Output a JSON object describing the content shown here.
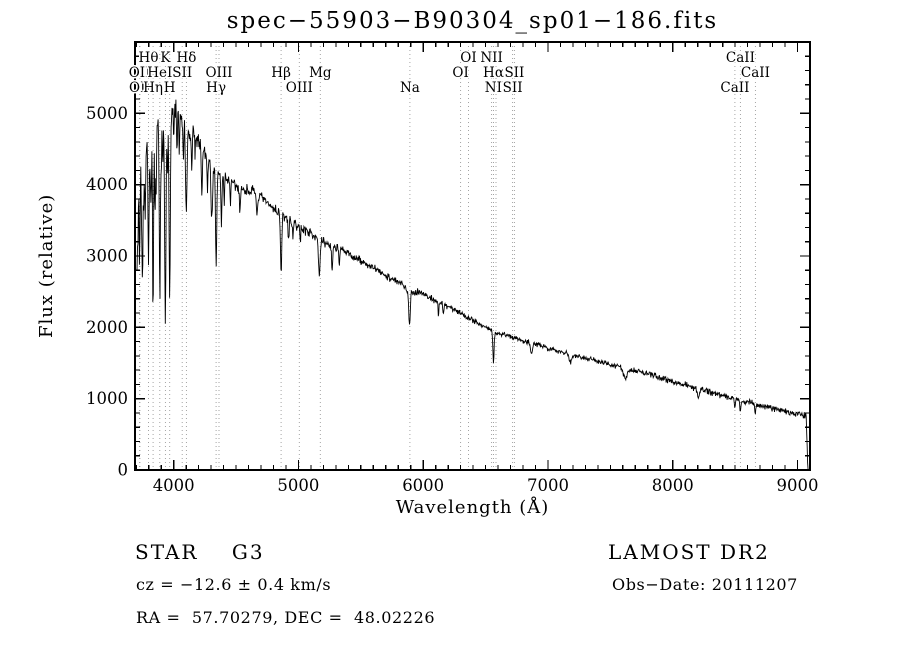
{
  "chart_data": {
    "type": "line",
    "title": "spec−55903−B90304_sp01−186.fits",
    "xlabel": "Wavelength (Å)",
    "ylabel": "Flux (relative)",
    "xlim": [
      3690,
      9100
    ],
    "ylim": [
      0,
      6000
    ],
    "x_major_ticks": [
      4000,
      5000,
      6000,
      7000,
      8000,
      9000
    ],
    "x_minor_step": 100,
    "y_major_ticks": [
      0,
      1000,
      2000,
      3000,
      4000,
      5000
    ],
    "y_minor_step": 200,
    "line_color": "#000000",
    "marker_line_color": "#9a9a9a",
    "frame_color": "#000000",
    "spectral_lines": [
      {
        "label": "OII",
        "wavelength": 3727,
        "row": 2
      },
      {
        "label": "OII",
        "wavelength": 3729,
        "row": 3
      },
      {
        "label": "Hθ",
        "wavelength": 3798,
        "row": 1
      },
      {
        "label": "Hη",
        "wavelength": 3835,
        "row": 3
      },
      {
        "label": "HeI",
        "wavelength": 3889,
        "row": 2
      },
      {
        "label": "K",
        "wavelength": 3934,
        "row": 1
      },
      {
        "label": "H",
        "wavelength": 3968,
        "row": 3
      },
      {
        "label": "SII",
        "wavelength": 4068,
        "row": 2
      },
      {
        "label": "Hδ",
        "wavelength": 4102,
        "row": 1
      },
      {
        "label": "Hγ",
        "wavelength": 4340,
        "row": 3
      },
      {
        "label": "OIII",
        "wavelength": 4363,
        "row": 2
      },
      {
        "label": "Hβ",
        "wavelength": 4861,
        "row": 2
      },
      {
        "label": "OIII",
        "wavelength": 5007,
        "row": 3
      },
      {
        "label": "Mg",
        "wavelength": 5175,
        "row": 2
      },
      {
        "label": "Na",
        "wavelength": 5893,
        "row": 3
      },
      {
        "label": "OI",
        "wavelength": 6300,
        "row": 2
      },
      {
        "label": "OI",
        "wavelength": 6363,
        "row": 1
      },
      {
        "label": "NII",
        "wavelength": 6548,
        "row": 1
      },
      {
        "label": "Hα",
        "wavelength": 6563,
        "row": 2
      },
      {
        "label": "NII",
        "wavelength": 6583,
        "row": 3
      },
      {
        "label": "SII",
        "wavelength": 6716,
        "row": 3
      },
      {
        "label": "SII",
        "wavelength": 6731,
        "row": 2
      },
      {
        "label": "CaII",
        "wavelength": 8498,
        "row": 3
      },
      {
        "label": "CaII",
        "wavelength": 8542,
        "row": 1
      },
      {
        "label": "CaII",
        "wavelength": 8662,
        "row": 2
      }
    ],
    "spectrum": {
      "seed": 7,
      "samples": 1400,
      "range": [
        3706,
        9085
      ],
      "cutoff": {
        "start": 9070,
        "end": 9083
      },
      "continuum_points": [
        [
          3705,
          3200
        ],
        [
          3720,
          4300
        ],
        [
          3737,
          4600
        ],
        [
          3755,
          4500
        ],
        [
          3775,
          4700
        ],
        [
          3795,
          4650
        ],
        [
          3815,
          4750
        ],
        [
          3835,
          4700
        ],
        [
          3855,
          4650
        ],
        [
          3875,
          4850
        ],
        [
          3895,
          4800
        ],
        [
          3915,
          4900
        ],
        [
          3935,
          4900
        ],
        [
          3955,
          4950
        ],
        [
          3975,
          5000
        ],
        [
          3995,
          5050
        ],
        [
          4015,
          5080
        ],
        [
          4040,
          4950
        ],
        [
          4070,
          4850
        ],
        [
          4100,
          4750
        ],
        [
          4130,
          4650
        ],
        [
          4170,
          4720
        ],
        [
          4210,
          4580
        ],
        [
          4260,
          4420
        ],
        [
          4310,
          4280
        ],
        [
          4360,
          4150
        ],
        [
          4410,
          4120
        ],
        [
          4460,
          4020
        ],
        [
          4510,
          3960
        ],
        [
          4560,
          3920
        ],
        [
          4610,
          3930
        ],
        [
          4660,
          3860
        ],
        [
          4710,
          3800
        ],
        [
          4760,
          3720
        ],
        [
          4810,
          3660
        ],
        [
          4860,
          3580
        ],
        [
          4910,
          3520
        ],
        [
          4960,
          3460
        ],
        [
          5010,
          3410
        ],
        [
          5060,
          3360
        ],
        [
          5110,
          3310
        ],
        [
          5160,
          3270
        ],
        [
          5210,
          3180
        ],
        [
          5260,
          3160
        ],
        [
          5310,
          3120
        ],
        [
          5360,
          3070
        ],
        [
          5410,
          3020
        ],
        [
          5460,
          2970
        ],
        [
          5510,
          2920
        ],
        [
          5560,
          2870
        ],
        [
          5610,
          2820
        ],
        [
          5660,
          2770
        ],
        [
          5710,
          2720
        ],
        [
          5760,
          2670
        ],
        [
          5810,
          2620
        ],
        [
          5860,
          2560
        ],
        [
          5910,
          2480
        ],
        [
          5960,
          2510
        ],
        [
          6010,
          2460
        ],
        [
          6060,
          2410
        ],
        [
          6110,
          2370
        ],
        [
          6160,
          2330
        ],
        [
          6210,
          2290
        ],
        [
          6260,
          2240
        ],
        [
          6310,
          2190
        ],
        [
          6360,
          2140
        ],
        [
          6410,
          2090
        ],
        [
          6460,
          2040
        ],
        [
          6510,
          1990
        ],
        [
          6560,
          1950
        ],
        [
          6610,
          1910
        ],
        [
          6660,
          1890
        ],
        [
          6710,
          1870
        ],
        [
          6760,
          1840
        ],
        [
          6810,
          1810
        ],
        [
          6860,
          1790
        ],
        [
          6910,
          1760
        ],
        [
          6960,
          1730
        ],
        [
          7010,
          1700
        ],
        [
          7110,
          1660
        ],
        [
          7210,
          1610
        ],
        [
          7310,
          1570
        ],
        [
          7410,
          1520
        ],
        [
          7510,
          1470
        ],
        [
          7610,
          1430
        ],
        [
          7710,
          1390
        ],
        [
          7810,
          1340
        ],
        [
          7910,
          1290
        ],
        [
          8010,
          1240
        ],
        [
          8110,
          1190
        ],
        [
          8210,
          1140
        ],
        [
          8310,
          1090
        ],
        [
          8410,
          1040
        ],
        [
          8510,
          1000
        ],
        [
          8610,
          950
        ],
        [
          8710,
          905
        ],
        [
          8810,
          860
        ],
        [
          8910,
          815
        ],
        [
          9010,
          780
        ],
        [
          9060,
          760
        ],
        [
          9085,
          745
        ]
      ],
      "absorption_features": [
        [
          3712,
          700,
          4
        ],
        [
          3727,
          1500,
          4
        ],
        [
          3742,
          1000,
          3
        ],
        [
          3750,
          1700,
          4
        ],
        [
          3760,
          800,
          3
        ],
        [
          3771,
          1300,
          4
        ],
        [
          3798,
          1900,
          4
        ],
        [
          3812,
          700,
          3
        ],
        [
          3820,
          1000,
          3
        ],
        [
          3835,
          2600,
          4
        ],
        [
          3850,
          1200,
          3
        ],
        [
          3860,
          900,
          3
        ],
        [
          3889,
          2500,
          4
        ],
        [
          3900,
          800,
          3
        ],
        [
          3912,
          700,
          3
        ],
        [
          3933,
          3000,
          5
        ],
        [
          3950,
          900,
          3
        ],
        [
          3968,
          2400,
          5
        ],
        [
          4000,
          500,
          3
        ],
        [
          4026,
          600,
          3
        ],
        [
          4045,
          500,
          3
        ],
        [
          4077,
          500,
          3
        ],
        [
          4101,
          1300,
          5
        ],
        [
          4144,
          500,
          3
        ],
        [
          4172,
          400,
          3
        ],
        [
          4226,
          700,
          4
        ],
        [
          4271,
          500,
          3
        ],
        [
          4305,
          800,
          6
        ],
        [
          4340,
          1400,
          5
        ],
        [
          4383,
          700,
          4
        ],
        [
          4405,
          400,
          3
        ],
        [
          4455,
          300,
          3
        ],
        [
          4531,
          300,
          4
        ],
        [
          4668,
          300,
          4
        ],
        [
          4861,
          800,
          5
        ],
        [
          4920,
          300,
          4
        ],
        [
          4957,
          250,
          3
        ],
        [
          5015,
          250,
          3
        ],
        [
          5167,
          550,
          7
        ],
        [
          5270,
          350,
          5
        ],
        [
          5328,
          250,
          4
        ],
        [
          5890,
          470,
          6
        ],
        [
          6122,
          200,
          4
        ],
        [
          6162,
          180,
          4
        ],
        [
          6563,
          460,
          5
        ],
        [
          6867,
          130,
          8
        ],
        [
          7180,
          120,
          10
        ],
        [
          7620,
          160,
          14
        ],
        [
          8205,
          120,
          8
        ],
        [
          8498,
          130,
          4
        ],
        [
          8542,
          170,
          5
        ],
        [
          8662,
          140,
          5
        ]
      ],
      "noise_profile": [
        [
          3705,
          260
        ],
        [
          3800,
          260
        ],
        [
          3900,
          240
        ],
        [
          4000,
          210
        ],
        [
          4100,
          190
        ],
        [
          4250,
          150
        ],
        [
          4400,
          120
        ],
        [
          4600,
          100
        ],
        [
          4800,
          95
        ],
        [
          5000,
          85
        ],
        [
          5200,
          80
        ],
        [
          5500,
          70
        ],
        [
          5800,
          65
        ],
        [
          6000,
          60
        ],
        [
          6300,
          55
        ],
        [
          6600,
          50
        ],
        [
          7000,
          45
        ],
        [
          7400,
          45
        ],
        [
          7800,
          50
        ],
        [
          8200,
          55
        ],
        [
          8600,
          55
        ],
        [
          9000,
          60
        ],
        [
          9085,
          70
        ]
      ]
    }
  },
  "annotations": {
    "star_class": "STAR    G3",
    "cz": "cz = −12.6 ± 0.4 km/s",
    "ra_dec": "RA =  57.70279, DEC =  48.02226",
    "survey": "LAMOST DR2",
    "obs_date": "Obs−Date: 20111207"
  }
}
